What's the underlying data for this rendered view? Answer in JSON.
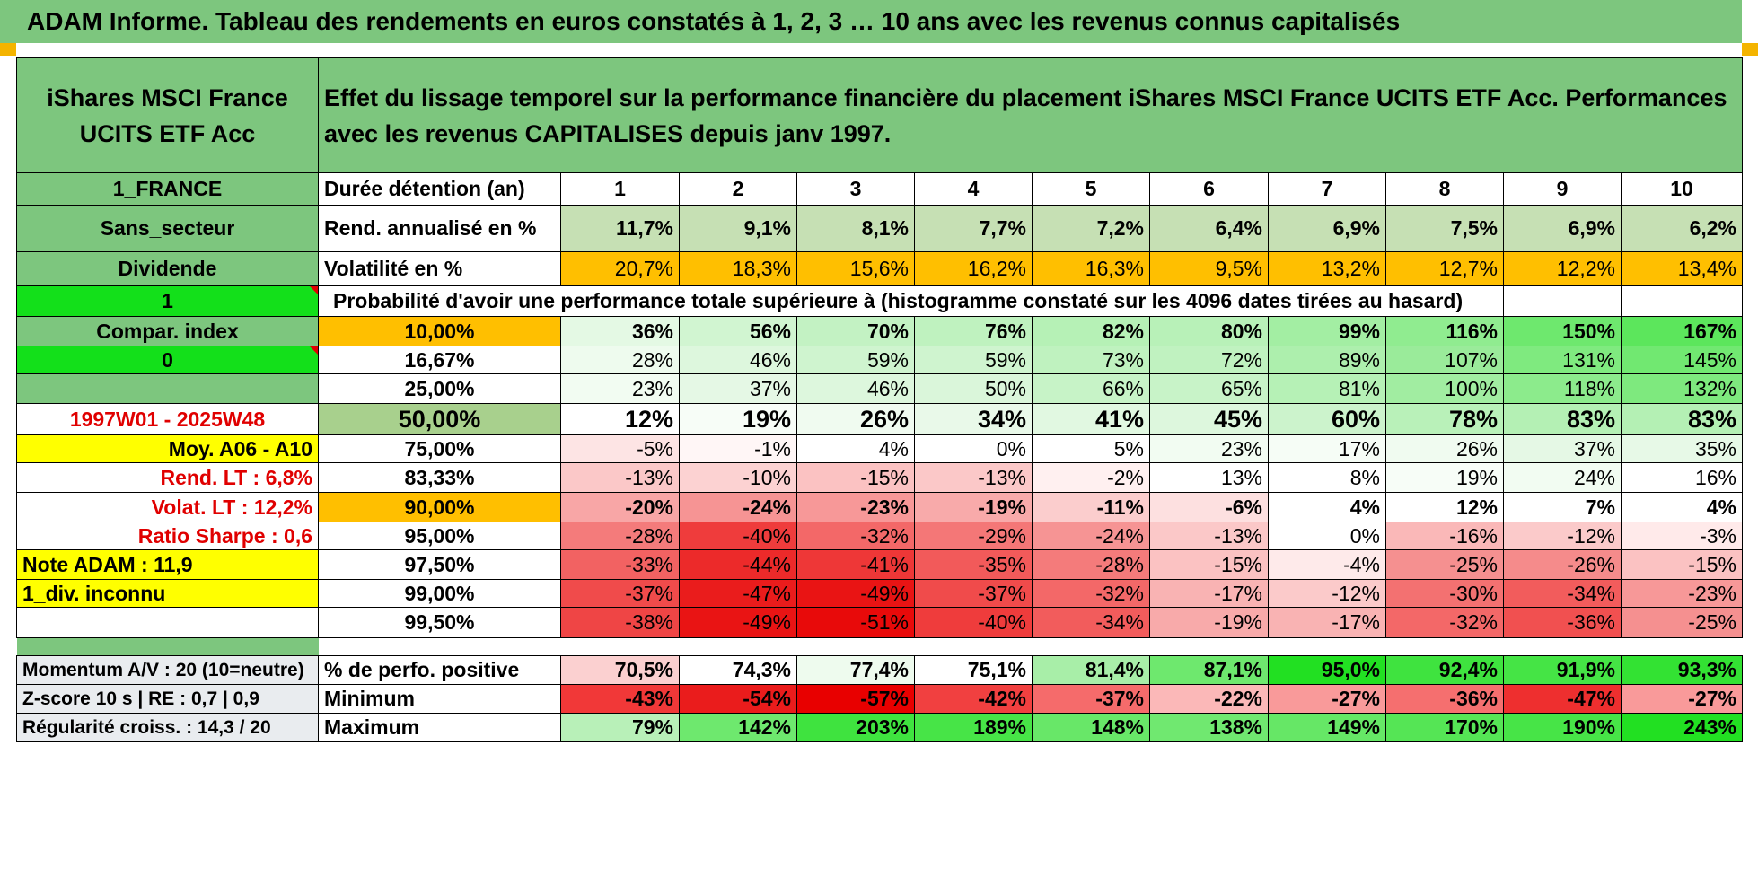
{
  "header": {
    "title": "ADAM Informe. Tableau des rendements en euros constatés à 1, 2, 3 … 10 ans avec les revenus connus capitalisés"
  },
  "colors": {
    "green_header": "#7dc67e",
    "bright_green": "#13e01a",
    "yellow": "#ffff00",
    "orange": "#ffbf00",
    "red_text": "#e00000"
  },
  "fund": {
    "name": "iShares MSCI France UCITS ETF Acc",
    "description": "Effet du lissage temporel sur la performance financière du placement iShares MSCI France UCITS ETF Acc. Performances avec les revenus CAPITALISES depuis janv 1997."
  },
  "left": {
    "country": "1_FRANCE",
    "sector": "Sans_secteur",
    "dividend_label": "Dividende",
    "dividend_value": "1",
    "compar_label": "Compar. index",
    "compar_value": "0",
    "blank": "",
    "period": "1997W01 - 2025W48",
    "moy": "Moy. A06 - A10",
    "rend_lt": "Rend. LT :    6,8%",
    "volat_lt": "Volat. LT :    12,2%",
    "sharpe": "Ratio Sharpe :    0,6",
    "note": "Note ADAM : 11,9",
    "div_inconnu": "1_div. inconnu",
    "momentum": "Momentum A/V : 20 (10=neutre)",
    "zscore": "Z-score 10 s | RE : 0,7 | 0,9",
    "regularite": "Régularité croiss. : 14,3 / 20"
  },
  "duration": {
    "label": "Durée détention (an)",
    "years": [
      "1",
      "2",
      "3",
      "4",
      "5",
      "6",
      "7",
      "8",
      "9",
      "10"
    ]
  },
  "rend": {
    "label": "Rend. annualisé en %",
    "values": [
      "11,7%",
      "9,1%",
      "8,1%",
      "7,7%",
      "7,2%",
      "6,4%",
      "6,9%",
      "7,5%",
      "6,9%",
      "6,2%"
    ]
  },
  "vol": {
    "label": "Volatilité en %",
    "values": [
      "20,7%",
      "18,3%",
      "15,6%",
      "16,2%",
      "16,3%",
      "9,5%",
      "13,2%",
      "12,7%",
      "12,2%",
      "13,4%"
    ]
  },
  "prob_title": "Probabilité d'avoir une performance totale supérieure à (histogramme constaté sur les 4096 dates tirées au hasard)",
  "prob_rows": [
    {
      "p": "10,00%",
      "values": [
        "36%",
        "56%",
        "70%",
        "76%",
        "82%",
        "80%",
        "99%",
        "116%",
        "150%",
        "167%"
      ],
      "bg": [
        "#e4f9e4",
        "#d1f5d1",
        "#c3f2c3",
        "#bff2bf",
        "#b6f1b6",
        "#b8f1b8",
        "#a3eea3",
        "#90ec90",
        "#6ee86e",
        "#5ce65c"
      ],
      "pbg": "#ffbf00",
      "bold": true
    },
    {
      "p": "16,67%",
      "values": [
        "28%",
        "46%",
        "59%",
        "59%",
        "73%",
        "72%",
        "89%",
        "107%",
        "131%",
        "145%"
      ],
      "bg": [
        "#eefbee",
        "#ddf7dd",
        "#cff4cf",
        "#cff4cf",
        "#bff2bf",
        "#c0f2c0",
        "#adefad",
        "#9aeb9a",
        "#7fea7f",
        "#71e871"
      ],
      "pbg": "#ffffff",
      "bold": false
    },
    {
      "p": "25,00%",
      "values": [
        "23%",
        "37%",
        "46%",
        "50%",
        "66%",
        "65%",
        "81%",
        "100%",
        "118%",
        "132%"
      ],
      "bg": [
        "#f2fcf2",
        "#e5f8e5",
        "#ddf7dd",
        "#daf6da",
        "#c7f3c7",
        "#c8f3c8",
        "#b6f1b6",
        "#a1ed a1",
        "#8ceb8c",
        "#7ee97e"
      ],
      "pbg": "#ffffff",
      "bold": false
    },
    {
      "p": "50,00%",
      "values": [
        "12%",
        "19%",
        "26%",
        "34%",
        "41%",
        "45%",
        "60%",
        "78%",
        "83%",
        "83%"
      ],
      "bg": [
        "#ffffff",
        "#f7fdf7",
        "#f0fbf0",
        "#e9f9e9",
        "#e1f8e1",
        "#ddf7dd",
        "#ccf3cc",
        "#b9f1b9",
        "#b4f0b4",
        "#b4f0b4"
      ],
      "pbg": "#a8d08d",
      "bold": true,
      "big": true
    },
    {
      "p": "75,00%",
      "values": [
        "-5%",
        "-1%",
        "4%",
        "0%",
        "5%",
        "23%",
        "17%",
        "26%",
        "37%",
        "35%"
      ],
      "bg": [
        "#fde4e4",
        "#fff6f6",
        "#ffffff",
        "#ffffff",
        "#ffffff",
        "#f2fcf2",
        "#f6fdf6",
        "#f0fbf0",
        "#e5f8e5",
        "#e7f9e7"
      ],
      "pbg": "#ffffff",
      "bold": false
    },
    {
      "p": "83,33%",
      "values": [
        "-13%",
        "-10%",
        "-15%",
        "-13%",
        "-2%",
        "13%",
        "8%",
        "19%",
        "24%",
        "16%"
      ],
      "bg": [
        "#fbc8c8",
        "#fcd2d2",
        "#fbc2c2",
        "#fbc8c8",
        "#fff0f0",
        "#ffffff",
        "#ffffff",
        "#f7fdf7",
        "#f2fcf2",
        "#ffffff"
      ],
      "pbg": "#ffffff",
      "bold": false
    },
    {
      "p": "90,00%",
      "values": [
        "-20%",
        "-24%",
        "-23%",
        "-19%",
        "-11%",
        "-6%",
        "4%",
        "12%",
        "7%",
        "4%"
      ],
      "bg": [
        "#f8a6a6",
        "#f69494",
        "#f79898",
        "#f8aaaa",
        "#fbcdcd",
        "#fde0e0",
        "#ffffff",
        "#ffffff",
        "#ffffff",
        "#ffffff"
      ],
      "pbg": "#ffbf00",
      "bold": true
    },
    {
      "p": "95,00%",
      "values": [
        "-28%",
        "-40%",
        "-32%",
        "-29%",
        "-24%",
        "-13%",
        "0%",
        "-16%",
        "-12%",
        "-3%"
      ],
      "bg": [
        "#f47b7b",
        "#ef3c3c",
        "#f36868",
        "#f47777",
        "#f69494",
        "#fbc8c8",
        "#ffffff",
        "#fab8b8",
        "#fbcaca",
        "#ffeaea"
      ],
      "pbg": "#ffffff",
      "bold": false
    },
    {
      "p": "97,50%",
      "values": [
        "-33%",
        "-44%",
        "-41%",
        "-35%",
        "-28%",
        "-15%",
        "-4%",
        "-25%",
        "-26%",
        "-15%"
      ],
      "bg": [
        "#f26262",
        "#ec2a2a",
        "#ee3737",
        "#f25a5a",
        "#f47b7b",
        "#fbc2c2",
        "#feeaea",
        "#f59090",
        "#f58b8b",
        "#fbc2c2"
      ],
      "pbg": "#ffffff",
      "bold": false
    },
    {
      "p": "99,00%",
      "values": [
        "-37%",
        "-47%",
        "-49%",
        "-37%",
        "-32%",
        "-17%",
        "-12%",
        "-30%",
        "-34%",
        "-23%"
      ],
      "bg": [
        "#f04b4b",
        "#ea1c1c",
        "#e91414",
        "#f04b4b",
        "#f36868",
        "#f9b3b3",
        "#fbcaca",
        "#f37171",
        "#f25c5c",
        "#f79898"
      ],
      "pbg": "#ffffff",
      "bold": false
    },
    {
      "p": "99,50%",
      "values": [
        "-38%",
        "-49%",
        "-51%",
        "-40%",
        "-34%",
        "-19%",
        "-17%",
        "-32%",
        "-36%",
        "-25%"
      ],
      "bg": [
        "#ef4545",
        "#e91414",
        "#e80a0a",
        "#ef3c3c",
        "#f25c5c",
        "#f8aaaa",
        "#f9b3b3",
        "#f36868",
        "#f15050",
        "#f59090"
      ],
      "pbg": "#ffffff",
      "bold": false
    }
  ],
  "bottom": [
    {
      "label": "% de perfo. positive",
      "values": [
        "70,5%",
        "74,3%",
        "77,4%",
        "75,1%",
        "81,4%",
        "87,1%",
        "95,0%",
        "92,4%",
        "91,9%",
        "93,3%"
      ],
      "bg": [
        "#fbd0d0",
        "#ffffff",
        "#eefbee",
        "#ffffff",
        "#a8eea8",
        "#6ee86e",
        "#22e022",
        "#3fe33f",
        "#45e445",
        "#33e233"
      ]
    },
    {
      "label": "Minimum",
      "values": [
        "-43%",
        "-54%",
        "-57%",
        "-42%",
        "-37%",
        "-22%",
        "-27%",
        "-36%",
        "-47%",
        "-27%"
      ],
      "bg": [
        "#f13838",
        "#ea1c1c",
        "#e80000",
        "#f14040",
        "#f56b6b",
        "#fbb8b8",
        "#f99a9a",
        "#f56f6f",
        "#ee2f2f",
        "#f99a9a"
      ]
    },
    {
      "label": "Maximum",
      "values": [
        "79%",
        "142%",
        "203%",
        "189%",
        "148%",
        "138%",
        "149%",
        "170%",
        "190%",
        "243%"
      ],
      "bg": [
        "#b8f0b8",
        "#6ee86e",
        "#3fe33f",
        "#47e447",
        "#68e768",
        "#70e870",
        "#66e766",
        "#55e555",
        "#47e447",
        "#22e022"
      ]
    }
  ]
}
